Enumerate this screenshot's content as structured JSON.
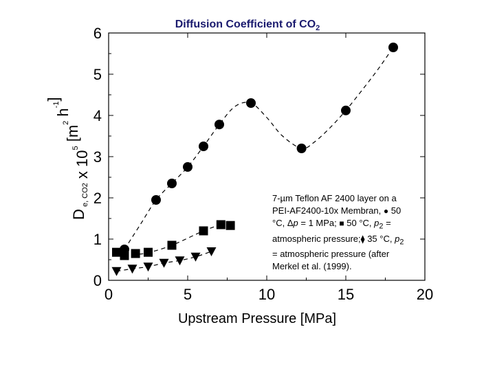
{
  "title": {
    "main": "Diffusion Coefficient of  CO",
    "sub": "2"
  },
  "chart_data": {
    "type": "scatter",
    "title": "Diffusion Coefficient of CO2",
    "xlabel": "Upstream Pressure [MPa]",
    "ylabel": "D e, CO2 x 10^5 [m^2 h^-1]",
    "xlim": [
      0,
      20
    ],
    "ylim": [
      0,
      6
    ],
    "xticks": [
      "0",
      "5",
      "10",
      "15",
      "20"
    ],
    "yticks": [
      "0",
      "1",
      "2",
      "3",
      "4",
      "5",
      "6"
    ],
    "series": [
      {
        "name": "50 °C, Δp = 1 MPa",
        "marker": "circle",
        "x": [
          1.0,
          3.0,
          4.0,
          5.0,
          6.0,
          7.0,
          9.0,
          12.2,
          15.0,
          18.0
        ],
        "y": [
          0.75,
          1.95,
          2.35,
          2.75,
          3.25,
          3.78,
          4.3,
          3.2,
          4.12,
          5.65
        ]
      },
      {
        "name": "50 °C, p2 = atmospheric pressure",
        "marker": "square",
        "x": [
          0.5,
          1.0,
          1.7,
          2.5,
          4.0,
          6.0,
          7.1,
          7.7
        ],
        "y": [
          0.68,
          0.6,
          0.65,
          0.68,
          0.85,
          1.2,
          1.35,
          1.33
        ]
      },
      {
        "name": "35 °C, p2 = atmospheric pressure (Merkel et al. 1999)",
        "marker": "triangle-down",
        "x": [
          0.5,
          1.5,
          2.5,
          3.5,
          4.5,
          5.5,
          6.5
        ],
        "y": [
          0.22,
          0.28,
          0.33,
          0.42,
          0.48,
          0.57,
          0.7
        ]
      }
    ],
    "fit_curve": {
      "x": [
        1.0,
        2.0,
        3.0,
        4.0,
        5.0,
        6.0,
        7.0,
        8.0,
        9.0,
        10.0,
        11.0,
        12.2,
        13.0,
        14.0,
        15.0,
        16.0,
        17.0,
        18.0
      ],
      "y": [
        0.75,
        1.35,
        1.95,
        2.35,
        2.75,
        3.25,
        3.78,
        4.22,
        4.3,
        3.95,
        3.5,
        3.2,
        3.35,
        3.7,
        4.12,
        4.6,
        5.1,
        5.65
      ]
    },
    "fit_curve_2": {
      "x": [
        0.5,
        1.7,
        2.5,
        4.0,
        6.0,
        7.1
      ],
      "y": [
        0.62,
        0.63,
        0.67,
        0.85,
        1.2,
        1.35
      ]
    },
    "fit_curve_3": {
      "x": [
        0.5,
        1.5,
        2.5,
        3.5,
        4.5,
        5.5,
        6.5
      ],
      "y": [
        0.22,
        0.28,
        0.33,
        0.42,
        0.48,
        0.57,
        0.7
      ]
    }
  },
  "legend": {
    "line1": "7-µm Teflon AF 2400 layer on a",
    "line2a": "PEI-AF2400-10x Membran,",
    "circle_sym": "●",
    "line2b": "50",
    "line3a": "°C,",
    "delta": "Δ",
    "p": "p",
    "line3b": "= 1 MPa;",
    "square_sym": "■",
    "line3c": "50 °C,",
    "p2a": "p",
    "p2a_sub": "2",
    "line3d": "=",
    "line4a": "atmospheric pressure;",
    "diamond_sym": "⧫",
    "line4b": "35 °C,",
    "p2b": "p",
    "p2b_sub": "2",
    "line5": "= atmospheric pressure (after",
    "line6": "Merkel et al. (1999)."
  }
}
